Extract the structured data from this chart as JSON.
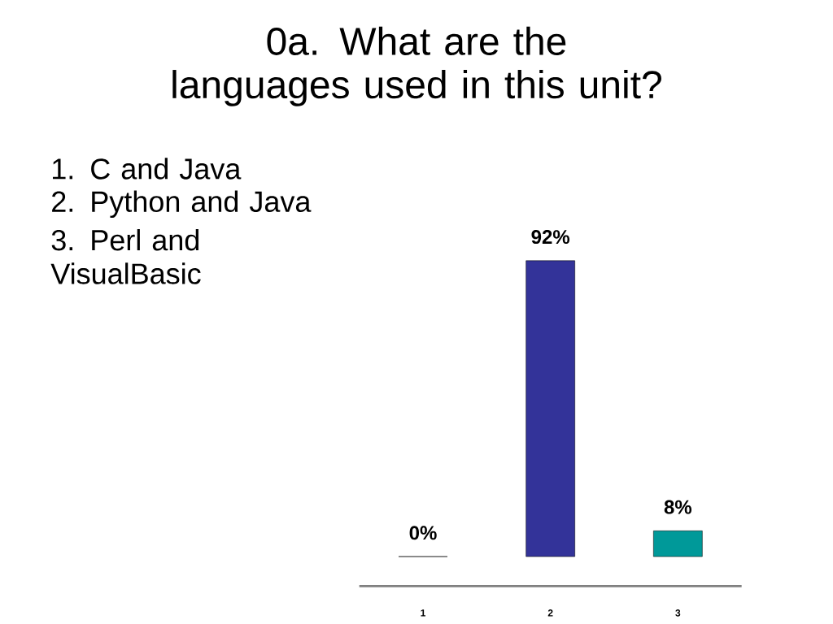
{
  "chart_data": {
    "type": "bar",
    "title": "0a. What are the languages used in this unit?",
    "categories": [
      "1",
      "2",
      "3"
    ],
    "values": [
      0,
      92,
      8
    ],
    "colors": [
      "#a9c0c6",
      "#333399",
      "#009999"
    ],
    "value_labels": [
      "0%",
      "92%",
      "8%"
    ],
    "tick_labels": "x",
    "annotations": [
      "1. C and Java",
      "2. Python and Java",
      "3. Perl and VisualBasic"
    ]
  }
}
